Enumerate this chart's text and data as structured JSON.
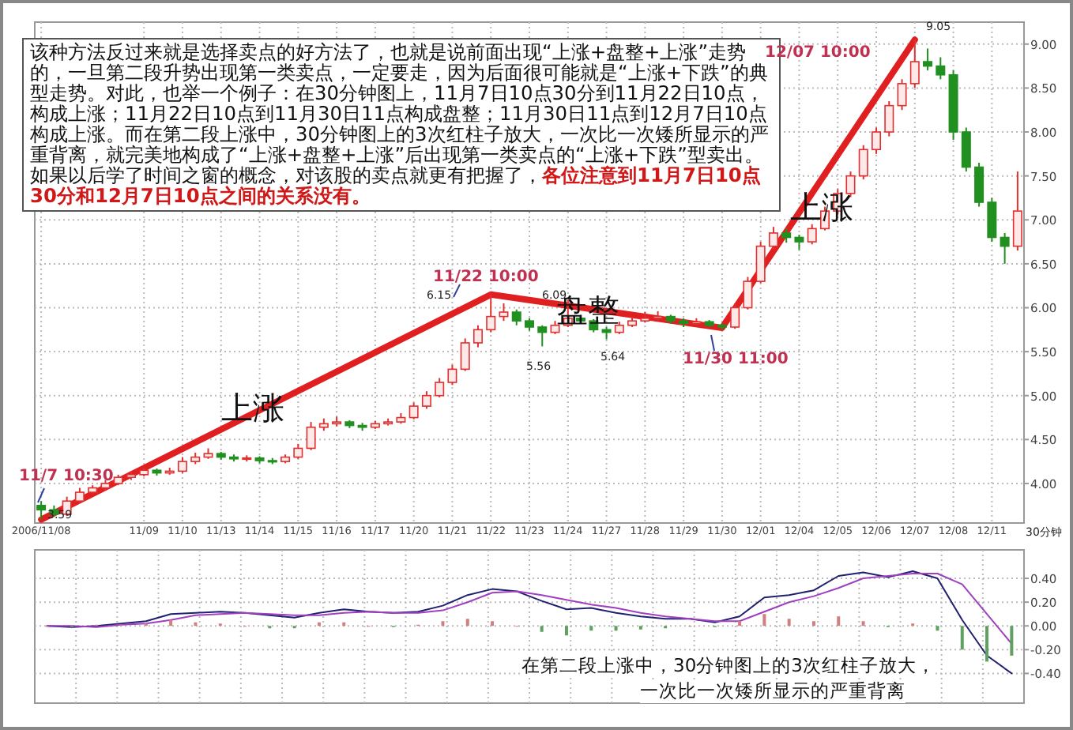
{
  "chart_data": [
    {
      "type": "candlestick",
      "categories": [
        "2006/11/08",
        null,
        null,
        null,
        null,
        null,
        null,
        null,
        "11/09",
        null,
        null,
        "11/10",
        null,
        null,
        "11/13",
        null,
        null,
        "11/14",
        null,
        null,
        "11/15",
        null,
        null,
        "11/16",
        null,
        null,
        "11/17",
        null,
        null,
        "11/20",
        null,
        null,
        "11/21",
        null,
        null,
        "11/22",
        null,
        null,
        "11/23",
        null,
        null,
        "11/24",
        null,
        null,
        "11/27",
        null,
        null,
        "11/28",
        null,
        null,
        "11/29",
        null,
        null,
        "11/30",
        null,
        null,
        "12/01",
        null,
        null,
        "12/04",
        null,
        null,
        "12/05",
        null,
        null,
        "12/06",
        null,
        null,
        "12/07",
        null,
        null,
        "12/08",
        null,
        null,
        "12/11",
        null,
        null
      ],
      "ohlc": [
        [
          3.75,
          3.8,
          3.59,
          3.7
        ],
        [
          3.7,
          3.75,
          3.62,
          3.65
        ],
        [
          3.65,
          3.85,
          3.63,
          3.8
        ],
        [
          3.8,
          3.95,
          3.78,
          3.9
        ],
        [
          3.9,
          3.98,
          3.88,
          3.95
        ],
        [
          3.95,
          4.04,
          3.92,
          4.0
        ],
        [
          4.0,
          4.1,
          3.98,
          4.07
        ],
        [
          4.07,
          4.14,
          4.04,
          4.1
        ],
        [
          4.1,
          4.18,
          4.08,
          4.15
        ],
        [
          4.15,
          4.17,
          4.09,
          4.12
        ],
        [
          4.12,
          4.18,
          4.1,
          4.14
        ],
        [
          4.14,
          4.3,
          4.12,
          4.25
        ],
        [
          4.25,
          4.35,
          4.22,
          4.3
        ],
        [
          4.3,
          4.4,
          4.28,
          4.34
        ],
        [
          4.34,
          4.36,
          4.27,
          4.3
        ],
        [
          4.3,
          4.33,
          4.25,
          4.28
        ],
        [
          4.28,
          4.32,
          4.25,
          4.29
        ],
        [
          4.29,
          4.31,
          4.23,
          4.26
        ],
        [
          4.26,
          4.29,
          4.22,
          4.25
        ],
        [
          4.25,
          4.33,
          4.23,
          4.3
        ],
        [
          4.3,
          4.45,
          4.28,
          4.4
        ],
        [
          4.4,
          4.7,
          4.38,
          4.64
        ],
        [
          4.64,
          4.74,
          4.6,
          4.68
        ],
        [
          4.68,
          4.76,
          4.65,
          4.7
        ],
        [
          4.7,
          4.72,
          4.63,
          4.66
        ],
        [
          4.66,
          4.69,
          4.6,
          4.64
        ],
        [
          4.64,
          4.71,
          4.62,
          4.68
        ],
        [
          4.68,
          4.74,
          4.66,
          4.7
        ],
        [
          4.7,
          4.8,
          4.68,
          4.75
        ],
        [
          4.75,
          4.92,
          4.73,
          4.88
        ],
        [
          4.88,
          5.05,
          4.85,
          5.0
        ],
        [
          5.0,
          5.2,
          4.98,
          5.15
        ],
        [
          5.15,
          5.35,
          5.12,
          5.3
        ],
        [
          5.3,
          5.65,
          5.28,
          5.6
        ],
        [
          5.6,
          5.8,
          5.55,
          5.75
        ],
        [
          5.75,
          6.15,
          5.72,
          5.9
        ],
        [
          5.9,
          6.05,
          5.85,
          5.95
        ],
        [
          5.95,
          5.98,
          5.8,
          5.85
        ],
        [
          5.85,
          5.88,
          5.74,
          5.78
        ],
        [
          5.78,
          5.8,
          5.56,
          5.72
        ],
        [
          5.72,
          5.85,
          5.7,
          5.8
        ],
        [
          5.8,
          6.09,
          5.78,
          5.88
        ],
        [
          5.88,
          5.92,
          5.82,
          5.85
        ],
        [
          5.85,
          5.87,
          5.72,
          5.75
        ],
        [
          5.75,
          5.78,
          5.64,
          5.72
        ],
        [
          5.72,
          5.84,
          5.7,
          5.8
        ],
        [
          5.8,
          5.9,
          5.78,
          5.85
        ],
        [
          5.85,
          5.95,
          5.83,
          5.88
        ],
        [
          5.88,
          5.96,
          5.86,
          5.9
        ],
        [
          5.9,
          5.92,
          5.82,
          5.85
        ],
        [
          5.85,
          5.88,
          5.78,
          5.82
        ],
        [
          5.82,
          5.88,
          5.8,
          5.84
        ],
        [
          5.84,
          5.86,
          5.78,
          5.8
        ],
        [
          5.8,
          5.82,
          5.75,
          5.78
        ],
        [
          5.78,
          6.05,
          5.76,
          6.0
        ],
        [
          6.0,
          6.35,
          5.98,
          6.3
        ],
        [
          6.3,
          6.75,
          6.28,
          6.7
        ],
        [
          6.7,
          6.92,
          6.66,
          6.85
        ],
        [
          6.85,
          6.9,
          6.74,
          6.8
        ],
        [
          6.8,
          6.83,
          6.66,
          6.75
        ],
        [
          6.75,
          6.95,
          6.72,
          6.9
        ],
        [
          6.9,
          7.15,
          6.88,
          7.1
        ],
        [
          7.1,
          7.35,
          7.06,
          7.3
        ],
        [
          7.3,
          7.55,
          7.26,
          7.5
        ],
        [
          7.5,
          7.85,
          7.46,
          7.8
        ],
        [
          7.8,
          8.05,
          7.75,
          8.0
        ],
        [
          8.0,
          8.35,
          7.95,
          8.3
        ],
        [
          8.3,
          8.6,
          8.25,
          8.55
        ],
        [
          8.55,
          9.05,
          8.5,
          8.8
        ],
        [
          8.8,
          8.95,
          8.7,
          8.75
        ],
        [
          8.75,
          8.85,
          8.6,
          8.65
        ],
        [
          8.65,
          8.7,
          7.91,
          8.0
        ],
        [
          8.0,
          8.05,
          7.55,
          7.6
        ],
        [
          7.6,
          7.65,
          7.15,
          7.2
        ],
        [
          7.2,
          7.25,
          6.75,
          6.8
        ],
        [
          6.8,
          6.85,
          6.5,
          6.7
        ],
        [
          6.7,
          7.55,
          6.65,
          7.1
        ]
      ],
      "series": [
        {
          "type": "line",
          "color": "#e02020",
          "x": [
            "2006/11/08",
            "11/22",
            "11/30",
            "12/07"
          ],
          "values": [
            3.59,
            6.15,
            5.77,
            9.05
          ]
        }
      ],
      "ylim": [
        3.55,
        9.25
      ],
      "yticks": [
        {
          "value": 4,
          "label": "4.00"
        },
        {
          "value": 4.5,
          "label": "4.50"
        },
        {
          "value": 5,
          "label": "5.00"
        },
        {
          "value": 5.5,
          "label": "5.50"
        },
        {
          "value": 6,
          "label": "6.00"
        },
        {
          "value": 6.5,
          "label": "6.50"
        },
        {
          "value": 7,
          "label": "7.00"
        },
        {
          "value": 7.5,
          "label": "7.50"
        },
        {
          "value": 8,
          "label": "8.00"
        },
        {
          "value": 8.5,
          "label": "8.50"
        },
        {
          "value": 9,
          "label": "9.00"
        }
      ],
      "grid": true,
      "annotations": [
        "该种方法反过来就是选择卖点的好方法了，也就是说前面出现“上涨+盘整+上涨”走势的，一旦第二段升势出现第一类卖点，一定要走，因为后面很可能就是“上涨+下跌”的典型走势。对此，也举一个例子：在30分钟图上，11月7日10点30分到11月22日10点，构成上涨；11月22日10点到11月30日11点构成盘整；11月30日11点到12月7日10点构成上涨。而在第二段上涨中，30分钟图上的3次红柱子放大，一次比一次矮所显示的严重背离，就完美地构成了“上涨+盘整+上涨”后出现第一类卖点的“上涨+下跌”型卖出。如果以后学了时间之窗的概念，对该股的卖点就更有把握了，",
        "各位注意到11月7日10点30分和12月7日10点之间的关系没有。",
        "11/7 10:30",
        "11/22 10:00",
        "11/30 11:00",
        "12/07 10:00",
        "上涨",
        "盘整",
        "上涨",
        "3.59",
        "6.15",
        "6.09",
        "5.56",
        "5.64",
        "9.05",
        "30分钟"
      ]
    },
    {
      "type": "line",
      "tick_labels": "y",
      "categories": [
        null,
        null,
        null,
        null,
        null,
        null,
        null,
        null,
        null,
        null,
        null,
        null,
        null,
        null,
        null,
        null,
        null,
        null,
        null,
        null,
        null,
        null,
        null,
        null,
        null,
        null,
        null,
        null,
        null,
        null,
        null,
        null,
        null,
        null,
        null,
        null,
        null,
        null,
        null,
        null
      ],
      "series": [
        {
          "type": "bar",
          "colors": [
            "#d08080",
            "#60a060",
            "#d08080",
            "#d08080",
            "#d08080",
            "#d08080",
            "#d08080",
            "#d08080",
            "#d08080",
            "#60a060",
            "#60a060",
            "#d08080",
            "#d08080",
            "#d08080",
            "#60a060",
            "#d08080",
            "#d08080",
            "#d08080",
            "#d08080",
            "#d08080",
            "#60a060",
            "#60a060",
            "#60a060",
            "#60a060",
            "#60a060",
            "#60a060",
            "#d08080",
            "#60a060",
            "#d08080",
            "#d08080",
            "#d08080",
            "#d08080",
            "#d08080",
            "#d08080",
            "#60a060",
            "#d08080",
            "#60a060",
            "#60a060",
            "#60a060",
            "#60a060"
          ],
          "values": [
            0.0,
            -0.01,
            0.01,
            0.01,
            0.02,
            0.05,
            0.03,
            0.02,
            0.0,
            -0.02,
            -0.02,
            0.03,
            0.03,
            0.0,
            -0.01,
            0.01,
            0.04,
            0.06,
            0.04,
            0.0,
            -0.05,
            -0.08,
            -0.04,
            -0.04,
            -0.03,
            -0.02,
            0.0,
            -0.01,
            0.04,
            0.1,
            0.06,
            0.04,
            0.08,
            0.04,
            -0.01,
            0.02,
            -0.04,
            -0.2,
            -0.3,
            -0.25
          ]
        },
        {
          "type": "line",
          "color": "#202070",
          "values": [
            0.0,
            -0.01,
            0.0,
            0.02,
            0.04,
            0.1,
            0.11,
            0.12,
            0.11,
            0.09,
            0.07,
            0.11,
            0.14,
            0.12,
            0.11,
            0.12,
            0.17,
            0.26,
            0.31,
            0.29,
            0.21,
            0.14,
            0.15,
            0.11,
            0.08,
            0.06,
            0.06,
            0.03,
            0.08,
            0.24,
            0.26,
            0.3,
            0.42,
            0.45,
            0.41,
            0.46,
            0.4,
            0.05,
            -0.25,
            -0.4
          ]
        },
        {
          "type": "line",
          "color": "#a040c0",
          "values": [
            0.0,
            0.0,
            -0.01,
            0.01,
            0.02,
            0.05,
            0.09,
            0.1,
            0.11,
            0.1,
            0.09,
            0.09,
            0.11,
            0.12,
            0.11,
            0.11,
            0.13,
            0.2,
            0.28,
            0.29,
            0.26,
            0.22,
            0.18,
            0.15,
            0.11,
            0.08,
            0.06,
            0.04,
            0.04,
            0.12,
            0.2,
            0.25,
            0.32,
            0.4,
            0.42,
            0.44,
            0.44,
            0.35,
            0.1,
            -0.15
          ]
        }
      ],
      "ylim": [
        -0.65,
        0.64
      ],
      "yticks": [
        {
          "value": -0.4,
          "label": "-0.40"
        },
        {
          "value": -0.2,
          "label": "-0.20"
        },
        {
          "value": 0,
          "label": "0.00"
        },
        {
          "value": 0.2,
          "label": "0.20"
        },
        {
          "value": 0.4,
          "label": "0.40"
        }
      ],
      "grid": true,
      "annotations": [
        "在第二段上涨中，30分钟图上的3次红柱子放大，",
        "一次比一次矮所显示的严重背离"
      ]
    }
  ]
}
